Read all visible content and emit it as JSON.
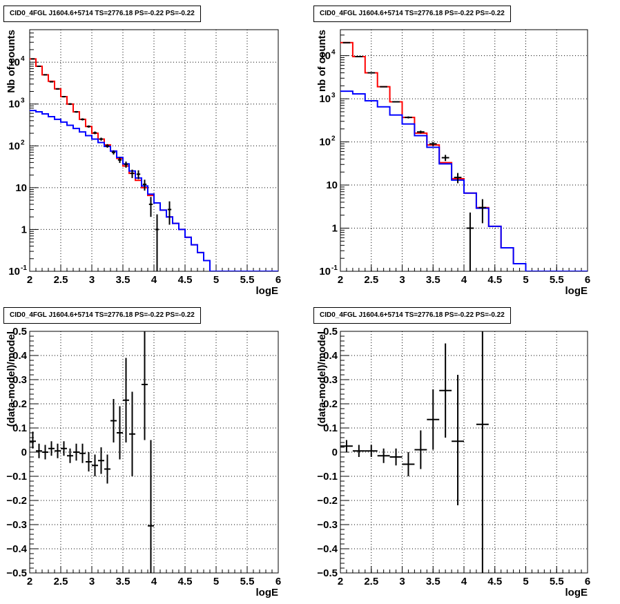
{
  "chart_data": [
    {
      "type": "line",
      "panel": "top-left",
      "title": "CID0_4FGL J1604.6+5714 TS=2776.18 PS=-0.22 PS=-0.22",
      "xlabel": "logE",
      "ylabel": "Nb of counts",
      "xlim": [
        2,
        6
      ],
      "ylim": [
        0.1,
        60000
      ],
      "yscale": "log",
      "grid": true,
      "x_ticks": [
        "2",
        "2.5",
        "3",
        "3.5",
        "4",
        "4.5",
        "5",
        "5.5",
        "6"
      ],
      "y_ticks": [
        {
          "value": 0.1,
          "label": "10",
          "sup": "-1"
        },
        {
          "value": 1,
          "label": "1"
        },
        {
          "value": 10,
          "label": "10"
        },
        {
          "value": 100,
          "label": "10",
          "sup": "2"
        },
        {
          "value": 1000,
          "label": "10",
          "sup": "3"
        },
        {
          "value": 10000,
          "label": "10",
          "sup": "4"
        }
      ],
      "bin_edges": [
        2.0,
        2.1,
        2.2,
        2.3,
        2.4,
        2.5,
        2.6,
        2.7,
        2.8,
        2.9,
        3.0,
        3.1,
        3.2,
        3.3,
        3.4,
        3.5,
        3.6,
        3.7,
        3.8,
        3.9,
        4.0,
        4.1,
        4.2,
        4.3,
        4.4,
        4.5,
        4.6,
        4.7,
        4.8,
        4.9,
        5.0,
        5.1,
        5.2,
        5.3,
        5.4,
        5.5,
        5.6,
        5.7,
        5.8,
        5.9,
        6.0
      ],
      "series": [
        {
          "color": "#ff0000",
          "style": "step",
          "values": [
            12000,
            8000,
            5000,
            3500,
            2300,
            1500,
            1000,
            650,
            430,
            290,
            200,
            145,
            105,
            75,
            50,
            33,
            22,
            15,
            10,
            6.5,
            4.3,
            2.9,
            2.0,
            1.4,
            1.0,
            0.65,
            0.43,
            0.28,
            0.18,
            0.1,
            0.1,
            0.1,
            0.1,
            0.1,
            0.1,
            0.1,
            0.1,
            0.1,
            0.1,
            0.1
          ]
        },
        {
          "color": "#0000ff",
          "style": "step",
          "values": [
            700,
            650,
            580,
            500,
            430,
            370,
            310,
            260,
            215,
            175,
            145,
            120,
            97,
            75,
            53,
            37,
            25,
            17,
            11,
            7,
            4.3,
            2.9,
            2.0,
            1.4,
            1.0,
            0.65,
            0.43,
            0.28,
            0.18,
            0.1,
            0.1,
            0.1,
            0.1,
            0.1,
            0.1,
            0.1,
            0.1,
            0.1,
            0.1,
            0.1
          ]
        },
        {
          "color": "#000000",
          "style": "points",
          "points": [
            {
              "x": 2.05,
              "y": 12000,
              "ylo": 11800,
              "yhi": 12200
            },
            {
              "x": 2.15,
              "y": 8000,
              "ylo": 7850,
              "yhi": 8150
            },
            {
              "x": 2.25,
              "y": 5000,
              "ylo": 4880,
              "yhi": 5120
            },
            {
              "x": 2.35,
              "y": 3400,
              "ylo": 3300,
              "yhi": 3500
            },
            {
              "x": 2.45,
              "y": 2300,
              "ylo": 2220,
              "yhi": 2380
            },
            {
              "x": 2.55,
              "y": 1500,
              "ylo": 1440,
              "yhi": 1560
            },
            {
              "x": 2.65,
              "y": 1000,
              "ylo": 950,
              "yhi": 1050
            },
            {
              "x": 2.75,
              "y": 650,
              "ylo": 620,
              "yhi": 680
            },
            {
              "x": 2.85,
              "y": 430,
              "ylo": 405,
              "yhi": 455
            },
            {
              "x": 2.95,
              "y": 290,
              "ylo": 272,
              "yhi": 308
            },
            {
              "x": 3.05,
              "y": 205,
              "ylo": 190,
              "yhi": 220
            },
            {
              "x": 3.15,
              "y": 145,
              "ylo": 133,
              "yhi": 157
            },
            {
              "x": 3.25,
              "y": 100,
              "ylo": 90,
              "yhi": 110
            },
            {
              "x": 3.35,
              "y": 70,
              "ylo": 62,
              "yhi": 78
            },
            {
              "x": 3.45,
              "y": 46,
              "ylo": 39,
              "yhi": 53
            },
            {
              "x": 3.55,
              "y": 36,
              "ylo": 30,
              "yhi": 42
            },
            {
              "x": 3.65,
              "y": 22,
              "ylo": 17,
              "yhi": 27
            },
            {
              "x": 3.75,
              "y": 21,
              "ylo": 16,
              "yhi": 26
            },
            {
              "x": 3.85,
              "y": 12,
              "ylo": 8.5,
              "yhi": 15.5
            },
            {
              "x": 3.95,
              "y": 4,
              "ylo": 2,
              "yhi": 6
            },
            {
              "x": 4.05,
              "y": 1,
              "ylo": 0.1,
              "yhi": 2.3
            },
            {
              "x": 4.25,
              "y": 3,
              "ylo": 1.3,
              "yhi": 4.7
            }
          ]
        }
      ]
    },
    {
      "type": "line",
      "panel": "top-right",
      "title": "CID0_4FGL J1604.6+5714 TS=2776.18 PS=-0.22 PS=-0.22",
      "xlabel": "logE",
      "ylabel": "nb of counts",
      "xlim": [
        2,
        6
      ],
      "ylim": [
        0.1,
        40000
      ],
      "yscale": "log",
      "grid": true,
      "x_ticks": [
        "2",
        "2.5",
        "3",
        "3.5",
        "4",
        "4.5",
        "5",
        "5.5",
        "6"
      ],
      "y_ticks": [
        {
          "value": 0.1,
          "label": "10",
          "sup": "-1"
        },
        {
          "value": 1,
          "label": "1"
        },
        {
          "value": 10,
          "label": "10"
        },
        {
          "value": 100,
          "label": "10",
          "sup": "2"
        },
        {
          "value": 1000,
          "label": "10",
          "sup": "3"
        },
        {
          "value": 10000,
          "label": "10",
          "sup": "4"
        }
      ],
      "bin_edges": [
        2.0,
        2.2,
        2.4,
        2.6,
        2.8,
        3.0,
        3.2,
        3.4,
        3.6,
        3.8,
        4.0,
        4.2,
        4.4,
        4.6,
        4.8,
        5.0,
        5.2,
        5.4,
        5.6,
        5.8,
        6.0
      ],
      "series": [
        {
          "color": "#ff0000",
          "style": "step",
          "values": [
            20000,
            9500,
            4000,
            1900,
            850,
            370,
            160,
            85,
            33,
            14,
            6.5,
            3.0,
            1.1,
            0.35,
            0.15,
            0.1,
            0.1,
            0.1,
            0.1,
            0.1
          ]
        },
        {
          "color": "#0000ff",
          "style": "step",
          "values": [
            1500,
            1300,
            900,
            650,
            420,
            260,
            140,
            75,
            31,
            13,
            6.5,
            2.9,
            1.1,
            0.35,
            0.15,
            0.1,
            0.1,
            0.1,
            0.1,
            0.1
          ]
        },
        {
          "color": "#000000",
          "style": "points",
          "points": [
            {
              "x": 2.1,
              "y": 20000,
              "ylo": 19800,
              "yhi": 20200
            },
            {
              "x": 2.3,
              "y": 9500,
              "ylo": 9380,
              "yhi": 9620
            },
            {
              "x": 2.5,
              "y": 4000,
              "ylo": 3930,
              "yhi": 4070
            },
            {
              "x": 2.7,
              "y": 1900,
              "ylo": 1850,
              "yhi": 1950
            },
            {
              "x": 2.9,
              "y": 850,
              "ylo": 820,
              "yhi": 880
            },
            {
              "x": 3.1,
              "y": 370,
              "ylo": 350,
              "yhi": 390
            },
            {
              "x": 3.3,
              "y": 170,
              "ylo": 157,
              "yhi": 183
            },
            {
              "x": 3.5,
              "y": 90,
              "ylo": 80,
              "yhi": 100
            },
            {
              "x": 3.7,
              "y": 43,
              "ylo": 36,
              "yhi": 50
            },
            {
              "x": 3.9,
              "y": 15,
              "ylo": 11,
              "yhi": 19
            },
            {
              "x": 4.1,
              "y": 1,
              "ylo": 0.1,
              "yhi": 2.3
            },
            {
              "x": 4.3,
              "y": 3,
              "ylo": 1.3,
              "yhi": 4.7
            }
          ]
        }
      ]
    },
    {
      "type": "scatter",
      "panel": "bottom-left",
      "title": "CID0_4FGL J1604.6+5714 TS=2776.18 PS=-0.22 PS=-0.22",
      "xlabel": "logE",
      "ylabel": "(data-model)/model",
      "xlim": [
        2,
        6
      ],
      "ylim": [
        -0.5,
        0.5
      ],
      "yscale": "linear",
      "grid": true,
      "x_ticks": [
        "2",
        "2.5",
        "3",
        "3.5",
        "4",
        "4.5",
        "5",
        "5.5",
        "6"
      ],
      "y_ticks": [
        {
          "value": 0.5,
          "label": "0.5"
        },
        {
          "value": 0.4,
          "label": "0.4"
        },
        {
          "value": 0.3,
          "label": "0.3"
        },
        {
          "value": 0.2,
          "label": "0.2"
        },
        {
          "value": 0.1,
          "label": "0.1"
        },
        {
          "value": 0,
          "label": "0"
        },
        {
          "value": -0.1,
          "label": "−0.1"
        },
        {
          "value": -0.2,
          "label": "−0.2"
        },
        {
          "value": -0.3,
          "label": "−0.3"
        },
        {
          "value": -0.4,
          "label": "−0.4"
        },
        {
          "value": -0.5,
          "label": "−0.5"
        }
      ],
      "xerr": 0.05,
      "points": [
        {
          "x": 2.05,
          "y": 0.045,
          "ylo": 0.015,
          "yhi": 0.085
        },
        {
          "x": 2.15,
          "y": 0.005,
          "ylo": -0.025,
          "yhi": 0.035
        },
        {
          "x": 2.25,
          "y": 0.0,
          "ylo": -0.03,
          "yhi": 0.03
        },
        {
          "x": 2.35,
          "y": 0.015,
          "ylo": -0.015,
          "yhi": 0.045
        },
        {
          "x": 2.45,
          "y": 0.005,
          "ylo": -0.025,
          "yhi": 0.035
        },
        {
          "x": 2.55,
          "y": 0.015,
          "ylo": -0.015,
          "yhi": 0.045
        },
        {
          "x": 2.65,
          "y": -0.015,
          "ylo": -0.045,
          "yhi": 0.015
        },
        {
          "x": 2.75,
          "y": 0.0,
          "ylo": -0.035,
          "yhi": 0.035
        },
        {
          "x": 2.85,
          "y": -0.005,
          "ylo": -0.045,
          "yhi": 0.035
        },
        {
          "x": 2.95,
          "y": -0.04,
          "ylo": -0.08,
          "yhi": 0.0
        },
        {
          "x": 3.05,
          "y": -0.055,
          "ylo": -0.1,
          "yhi": -0.01
        },
        {
          "x": 3.15,
          "y": -0.035,
          "ylo": -0.09,
          "yhi": 0.02
        },
        {
          "x": 3.25,
          "y": -0.07,
          "ylo": -0.13,
          "yhi": -0.01
        },
        {
          "x": 3.35,
          "y": 0.13,
          "ylo": 0.04,
          "yhi": 0.22
        },
        {
          "x": 3.45,
          "y": 0.08,
          "ylo": -0.03,
          "yhi": 0.19
        },
        {
          "x": 3.55,
          "y": 0.215,
          "ylo": 0.04,
          "yhi": 0.39
        },
        {
          "x": 3.65,
          "y": 0.075,
          "ylo": -0.1,
          "yhi": 0.25
        },
        {
          "x": 3.85,
          "y": 0.28,
          "ylo": 0.05,
          "yhi": 0.51
        },
        {
          "x": 3.95,
          "y": -0.305,
          "ylo": -0.66,
          "yhi": 0.05
        }
      ]
    },
    {
      "type": "scatter",
      "panel": "bottom-right",
      "title": "CID0_4FGL J1604.6+5714 TS=2776.18 PS=-0.22 PS=-0.22",
      "xlabel": "logE",
      "ylabel": "(data-model)/model",
      "xlim": [
        2,
        6
      ],
      "ylim": [
        -0.5,
        0.5
      ],
      "yscale": "linear",
      "grid": true,
      "x_ticks": [
        "2",
        "2.5",
        "3",
        "3.5",
        "4",
        "4.5",
        "5",
        "5.5",
        "6"
      ],
      "y_ticks": [
        {
          "value": 0.5,
          "label": "0.5"
        },
        {
          "value": 0.4,
          "label": "0.4"
        },
        {
          "value": 0.3,
          "label": "0.3"
        },
        {
          "value": 0.2,
          "label": "0.2"
        },
        {
          "value": 0.1,
          "label": "0.1"
        },
        {
          "value": 0,
          "label": "0"
        },
        {
          "value": -0.1,
          "label": "−0.1"
        },
        {
          "value": -0.2,
          "label": "−0.2"
        },
        {
          "value": -0.3,
          "label": "−0.3"
        },
        {
          "value": -0.4,
          "label": "−0.4"
        },
        {
          "value": -0.5,
          "label": "−0.5"
        }
      ],
      "xerr": 0.1,
      "points": [
        {
          "x": 2.1,
          "y": 0.025,
          "ylo": 0.0,
          "yhi": 0.05
        },
        {
          "x": 2.3,
          "y": 0.005,
          "ylo": -0.02,
          "yhi": 0.03
        },
        {
          "x": 2.5,
          "y": 0.005,
          "ylo": -0.02,
          "yhi": 0.03
        },
        {
          "x": 2.7,
          "y": -0.015,
          "ylo": -0.045,
          "yhi": 0.015
        },
        {
          "x": 2.9,
          "y": -0.02,
          "ylo": -0.055,
          "yhi": 0.015
        },
        {
          "x": 3.1,
          "y": -0.05,
          "ylo": -0.1,
          "yhi": 0.0
        },
        {
          "x": 3.3,
          "y": 0.01,
          "ylo": -0.07,
          "yhi": 0.09
        },
        {
          "x": 3.5,
          "y": 0.135,
          "ylo": 0.01,
          "yhi": 0.26
        },
        {
          "x": 3.7,
          "y": 0.255,
          "ylo": 0.06,
          "yhi": 0.45
        },
        {
          "x": 3.9,
          "y": 0.045,
          "ylo": -0.22,
          "yhi": 0.32
        },
        {
          "x": 4.3,
          "y": 0.115,
          "ylo": -0.55,
          "yhi": 0.55
        }
      ]
    }
  ]
}
